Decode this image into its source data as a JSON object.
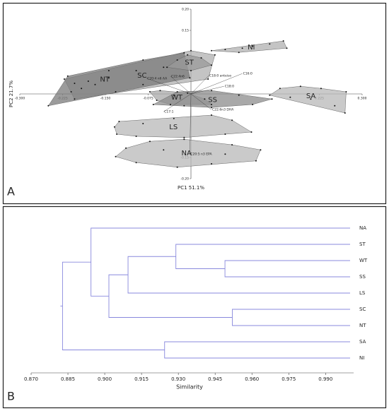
{
  "chart_data": [
    {
      "type": "scatter",
      "panel_label": "A",
      "xlabel": "PC1 51.1%",
      "ylabel": "PC2 21.7%",
      "xlim": [
        -0.3,
        0.3
      ],
      "ylim": [
        -0.2,
        0.2
      ],
      "xticks": [
        {
          "value": -0.3,
          "label": "-0.300"
        },
        {
          "value": -0.225,
          "label": "-0.225"
        },
        {
          "value": -0.15,
          "label": "-0.150"
        },
        {
          "value": -0.075,
          "label": "-0.075"
        },
        {
          "value": 0.225,
          "label": "0.225"
        },
        {
          "value": 0.3,
          "label": "0.300"
        }
      ],
      "yticks": [
        {
          "value": 0.2,
          "label": "0.20"
        },
        {
          "value": 0.15,
          "label": "0.15"
        },
        {
          "value": -0.15,
          "label": "-0.15"
        },
        {
          "value": -0.2,
          "label": "-0.20"
        }
      ],
      "groups": [
        {
          "name": "SC",
          "color": "#b0b0b0",
          "x": [
            -0.222,
            -0.204,
            -0.144,
            -0.096,
            -0.048,
            0,
            0.042,
            0.03,
            -0.084,
            -0.132
          ],
          "y": [
            0.035,
            -0.012,
            0.038,
            0.055,
            0.063,
            0.102,
            0.092,
            0.035,
            0.022,
            0.005
          ]
        },
        {
          "name": "NT",
          "color": "#7a7a7a",
          "x": [
            -0.25,
            -0.216,
            -0.204,
            -0.192,
            -0.21,
            -0.18,
            -0.168,
            -0.144,
            -0.084,
            -0.012,
            -0.002
          ],
          "y": [
            -0.028,
            0.042,
            0.025,
            0.013,
            0.005,
            0.03,
            0.022,
            0.055,
            0.08,
            0.097,
            0.038
          ]
        },
        {
          "name": "ST",
          "color": "#9a9a9a",
          "x": [
            -0.042,
            -0.024,
            -0.006,
            0.018,
            0.036,
            0
          ],
          "y": [
            0.063,
            0.08,
            0.092,
            0.085,
            0.068,
            0.055
          ]
        },
        {
          "name": "NI",
          "color": "#b0b0b0",
          "x": [
            0.036,
            0.06,
            0.09,
            0.108,
            0.138,
            0.162,
            0.168,
            0.084
          ],
          "y": [
            0.102,
            0.105,
            0.108,
            0.113,
            0.118,
            0.125,
            0.108,
            0.098
          ]
        },
        {
          "name": "WT",
          "color": "#a8a8a8",
          "x": [
            -0.072,
            -0.054,
            -0.03,
            -0.006,
            0.024,
            0.036,
            -0.036,
            -0.06
          ],
          "y": [
            0.005,
            0.008,
            -0.003,
            0.002,
            -0.012,
            -0.025,
            -0.025,
            -0.015
          ]
        },
        {
          "name": "SS",
          "color": "#8c8c8c",
          "x": [
            -0.066,
            -0.024,
            0.036,
            0.084,
            0.142,
            0.108,
            0.036,
            -0.012
          ],
          "y": [
            -0.025,
            0.005,
            0.008,
            -0.003,
            -0.012,
            -0.025,
            -0.032,
            -0.028
          ]
        },
        {
          "name": "SA",
          "color": "#b8b8b8",
          "x": [
            0.138,
            0.156,
            0.192,
            0.228,
            0.272,
            0.27,
            0.252,
            0.21,
            0.174
          ],
          "y": [
            -0.003,
            0.013,
            0.018,
            0.013,
            0.005,
            -0.045,
            -0.028,
            -0.012,
            -0.008
          ]
        },
        {
          "name": "LS",
          "color": "#b8b8b8",
          "x": [
            -0.134,
            -0.126,
            -0.084,
            -0.03,
            0.036,
            0.072,
            0.106,
            0.06,
            -0.012,
            -0.096,
            -0.13
          ],
          "y": [
            -0.078,
            -0.065,
            -0.07,
            -0.058,
            -0.05,
            -0.062,
            -0.09,
            -0.095,
            -0.103,
            -0.1,
            -0.095
          ]
        },
        {
          "name": "NA",
          "color": "#b8b8b8",
          "x": [
            -0.132,
            -0.114,
            -0.072,
            -0.012,
            0.072,
            0.122,
            0.114,
            0.036,
            -0.024,
            -0.096,
            -0.048,
            0.06
          ],
          "y": [
            -0.148,
            -0.128,
            -0.112,
            -0.107,
            -0.12,
            -0.132,
            -0.158,
            -0.165,
            -0.173,
            -0.162,
            -0.132,
            -0.142
          ]
        }
      ],
      "loadings": [
        {
          "name": "C16:0",
          "x": 0.09,
          "y": 0.048
        },
        {
          "name": "C18:0 anteiso",
          "x": 0.031,
          "y": 0.043
        },
        {
          "name": "C22:6n3 DHA",
          "x": 0.036,
          "y": -0.037
        },
        {
          "name": "C20:5 n3 EPA",
          "x": -0.002,
          "y": -0.142
        },
        {
          "name": "C20:4 n6 AA",
          "x": -0.078,
          "y": 0.037
        },
        {
          "name": "C17:1",
          "x": -0.048,
          "y": -0.042
        },
        {
          "name": "C18:0",
          "x": 0.058,
          "y": 0.018
        },
        {
          "name": "C22:4n6",
          "x": -0.036,
          "y": 0.042
        }
      ]
    },
    {
      "type": "dendrogram",
      "panel_label": "B",
      "xlabel": "Similarity",
      "color": "#8888dd",
      "xlim": [
        0.87,
        1.0
      ],
      "xticks": [
        {
          "value": 0.87,
          "label": "0.870"
        },
        {
          "value": 0.885,
          "label": "0.885"
        },
        {
          "value": 0.9,
          "label": "0.900"
        },
        {
          "value": 0.915,
          "label": "0.915"
        },
        {
          "value": 0.93,
          "label": "0.930"
        },
        {
          "value": 0.945,
          "label": "0.945"
        },
        {
          "value": 0.96,
          "label": "0.960"
        },
        {
          "value": 0.975,
          "label": "0.975"
        },
        {
          "value": 0.99,
          "label": "0.990"
        }
      ],
      "leaves": [
        "NA",
        "ST",
        "WT",
        "SS",
        "LS",
        "SC",
        "NT",
        "SA",
        "NI"
      ],
      "merges": [
        {
          "children": [
            2,
            3
          ],
          "similarity": 0.949
        },
        {
          "children": [
            1,
            9
          ],
          "similarity": 0.929
        },
        {
          "children": [
            10,
            4
          ],
          "similarity": 0.9095
        },
        {
          "children": [
            5,
            6
          ],
          "similarity": 0.952
        },
        {
          "children": [
            11,
            12
          ],
          "similarity": 0.9017
        },
        {
          "children": [
            0,
            13
          ],
          "similarity": 0.8944
        },
        {
          "children": [
            7,
            8
          ],
          "similarity": 0.9244
        },
        {
          "children": [
            14,
            15
          ],
          "similarity": 0.8828
        }
      ]
    }
  ]
}
